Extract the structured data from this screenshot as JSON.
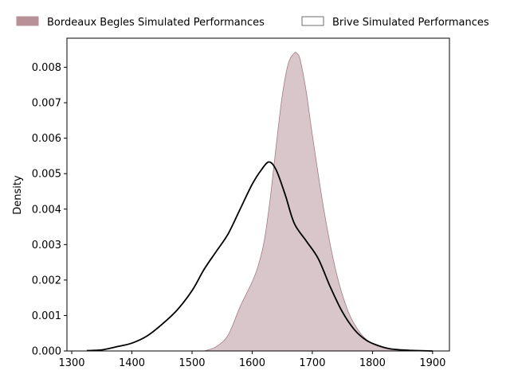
{
  "chart_data": {
    "type": "area",
    "title": "",
    "xlabel": "",
    "ylabel": "Density",
    "xlim": [
      1292,
      1928
    ],
    "ylim": [
      0,
      0.00882
    ],
    "xticks": [
      1300,
      1400,
      1500,
      1600,
      1700,
      1800,
      1900
    ],
    "xtick_labels": [
      "1300",
      "1400",
      "1500",
      "1600",
      "1700",
      "1800",
      "1900"
    ],
    "yticks": [
      0,
      0.001,
      0.002,
      0.003,
      0.004,
      0.005,
      0.006,
      0.007,
      0.008
    ],
    "ytick_labels": [
      "0.000",
      "0.001",
      "0.002",
      "0.003",
      "0.004",
      "0.005",
      "0.006",
      "0.007",
      "0.008"
    ],
    "grid": false,
    "legend_position": "top",
    "series": [
      {
        "name": "Bordeaux Begles Simulated Performances",
        "style": "filled",
        "fill_color": "#d8c6cb",
        "legend_color": "#b89098",
        "line_color": "#a07c84",
        "x": [
          1520,
          1540,
          1560,
          1580,
          1600,
          1610,
          1620,
          1630,
          1640,
          1650,
          1660,
          1670,
          1675,
          1680,
          1690,
          1700,
          1720,
          1740,
          1760,
          1780,
          1800,
          1820,
          1840,
          1860,
          1880
        ],
        "y": [
          0.0,
          0.00012,
          0.00045,
          0.00125,
          0.00195,
          0.0024,
          0.0031,
          0.0043,
          0.0058,
          0.0072,
          0.0081,
          0.0084,
          0.00838,
          0.0082,
          0.0073,
          0.0061,
          0.0039,
          0.0022,
          0.0011,
          0.0005,
          0.0002,
          8e-05,
          3e-05,
          1e-05,
          0.0
        ]
      },
      {
        "name": "Brive Simulated Performances",
        "style": "line",
        "line_color": "#000000",
        "x": [
          1325,
          1350,
          1375,
          1400,
          1425,
          1450,
          1475,
          1500,
          1520,
          1540,
          1560,
          1580,
          1600,
          1615,
          1628,
          1640,
          1655,
          1670,
          1690,
          1710,
          1730,
          1750,
          1770,
          1790,
          1810,
          1830,
          1860,
          1900
        ],
        "y": [
          1e-05,
          3e-05,
          0.00012,
          0.00022,
          0.00042,
          0.00075,
          0.00115,
          0.0017,
          0.0023,
          0.0028,
          0.0033,
          0.004,
          0.0047,
          0.0051,
          0.00533,
          0.0051,
          0.0044,
          0.0036,
          0.0031,
          0.0026,
          0.0018,
          0.0011,
          0.0006,
          0.0003,
          0.00015,
          6e-05,
          2e-05,
          0.0
        ]
      }
    ]
  }
}
